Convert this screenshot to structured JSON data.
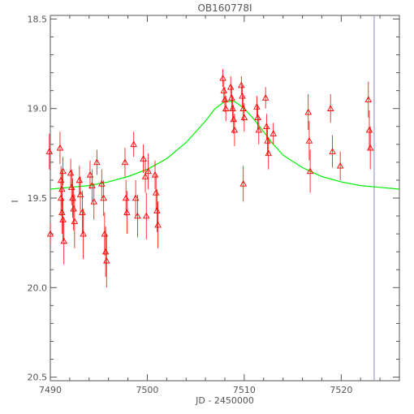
{
  "chart_data": {
    "type": "scatter",
    "title": "OB160778I",
    "xlabel": "JD - 2450000",
    "ylabel": "I",
    "xlim": [
      7490,
      7526
    ],
    "ylim": [
      20.52,
      18.48
    ],
    "y_inverted": true,
    "x_ticks": [
      7490,
      7500,
      7510,
      7520
    ],
    "y_ticks": [
      18.5,
      19.0,
      19.5,
      20.0,
      20.5
    ],
    "x_tick_labels": [
      "7490",
      "7500",
      "7510",
      "7520"
    ],
    "y_tick_labels": [
      "18.5",
      "19.0",
      "19.5",
      "20.0",
      "20.5"
    ],
    "grid": false,
    "colors": {
      "points": "#ff0000",
      "model": "#00ee00",
      "marker_line": "#8a8ab4",
      "axes": "#555555"
    },
    "vertical_marker_x": 7523.4,
    "model_curve": {
      "x": [
        7490,
        7492,
        7494,
        7496,
        7498,
        7500,
        7502,
        7504,
        7506,
        7507,
        7508,
        7509,
        7510,
        7511,
        7512,
        7513,
        7514,
        7516,
        7518,
        7520,
        7522,
        7524,
        7526
      ],
      "y": [
        19.45,
        19.44,
        19.43,
        19.41,
        19.38,
        19.34,
        19.28,
        19.19,
        19.07,
        19.0,
        18.96,
        18.96,
        19.0,
        19.06,
        19.13,
        19.2,
        19.26,
        19.33,
        19.38,
        19.41,
        19.43,
        19.44,
        19.45
      ]
    },
    "series": [
      {
        "x": [
          7489.9,
          7490.0,
          7491.0,
          7491.1,
          7491.1,
          7491.2,
          7491.2,
          7491.3,
          7491.3,
          7491.4,
          7492.1,
          7492.2,
          7492.3,
          7492.4,
          7492.5,
          7493.0,
          7493.1,
          7493.3,
          7493.4,
          7494.1,
          7494.3,
          7494.5,
          7494.8,
          7495.3,
          7495.5,
          7495.6,
          7495.7,
          7495.8,
          7497.7,
          7497.8,
          7497.9,
          7498.6,
          7498.8,
          7499.0,
          7499.6,
          7499.8,
          7499.9,
          7500.1,
          7500.8,
          7500.9,
          7501.0,
          7501.1,
          7507.8,
          7507.9,
          7508.0,
          7508.1,
          7508.6,
          7508.7,
          7508.8,
          7508.9,
          7509.0,
          7509.7,
          7509.8,
          7509.9,
          7510.0,
          7511.3,
          7511.4,
          7511.5,
          7512.2,
          7512.3,
          7512.4,
          7512.5,
          7513.0,
          7516.6,
          7516.7,
          7516.8,
          7518.9,
          7519.1,
          7519.9,
          7522.8,
          7522.9,
          7523.0,
          7509.9
        ],
        "y": [
          19.24,
          19.7,
          19.22,
          19.4,
          19.5,
          19.58,
          19.45,
          19.35,
          19.62,
          19.74,
          19.36,
          19.44,
          19.5,
          19.56,
          19.63,
          19.4,
          19.48,
          19.58,
          19.7,
          19.37,
          19.43,
          19.52,
          19.3,
          19.42,
          19.5,
          19.7,
          19.8,
          19.85,
          19.3,
          19.5,
          19.58,
          19.2,
          19.5,
          19.6,
          19.28,
          19.38,
          19.6,
          19.35,
          19.37,
          19.47,
          19.57,
          19.65,
          18.83,
          18.9,
          18.95,
          19.0,
          18.88,
          18.94,
          19.0,
          19.06,
          19.12,
          18.87,
          18.93,
          19.0,
          19.05,
          18.99,
          19.05,
          19.12,
          18.94,
          19.1,
          19.18,
          19.25,
          19.14,
          19.02,
          19.18,
          19.35,
          19.0,
          19.24,
          19.32,
          18.95,
          19.12,
          19.22,
          19.42
        ],
        "err": [
          0.1,
          0.06,
          0.09,
          0.08,
          0.1,
          0.12,
          0.1,
          0.08,
          0.12,
          0.13,
          0.08,
          0.1,
          0.11,
          0.12,
          0.15,
          0.08,
          0.1,
          0.12,
          0.14,
          0.08,
          0.09,
          0.1,
          0.07,
          0.08,
          0.1,
          0.12,
          0.14,
          0.15,
          0.08,
          0.1,
          0.12,
          0.07,
          0.1,
          0.12,
          0.08,
          0.09,
          0.13,
          0.1,
          0.08,
          0.1,
          0.12,
          0.13,
          0.05,
          0.06,
          0.07,
          0.07,
          0.06,
          0.07,
          0.07,
          0.08,
          0.09,
          0.05,
          0.06,
          0.07,
          0.08,
          0.06,
          0.07,
          0.08,
          0.06,
          0.07,
          0.08,
          0.09,
          0.06,
          0.1,
          0.11,
          0.12,
          0.08,
          0.09,
          0.08,
          0.1,
          0.11,
          0.12,
          0.1
        ]
      }
    ]
  }
}
